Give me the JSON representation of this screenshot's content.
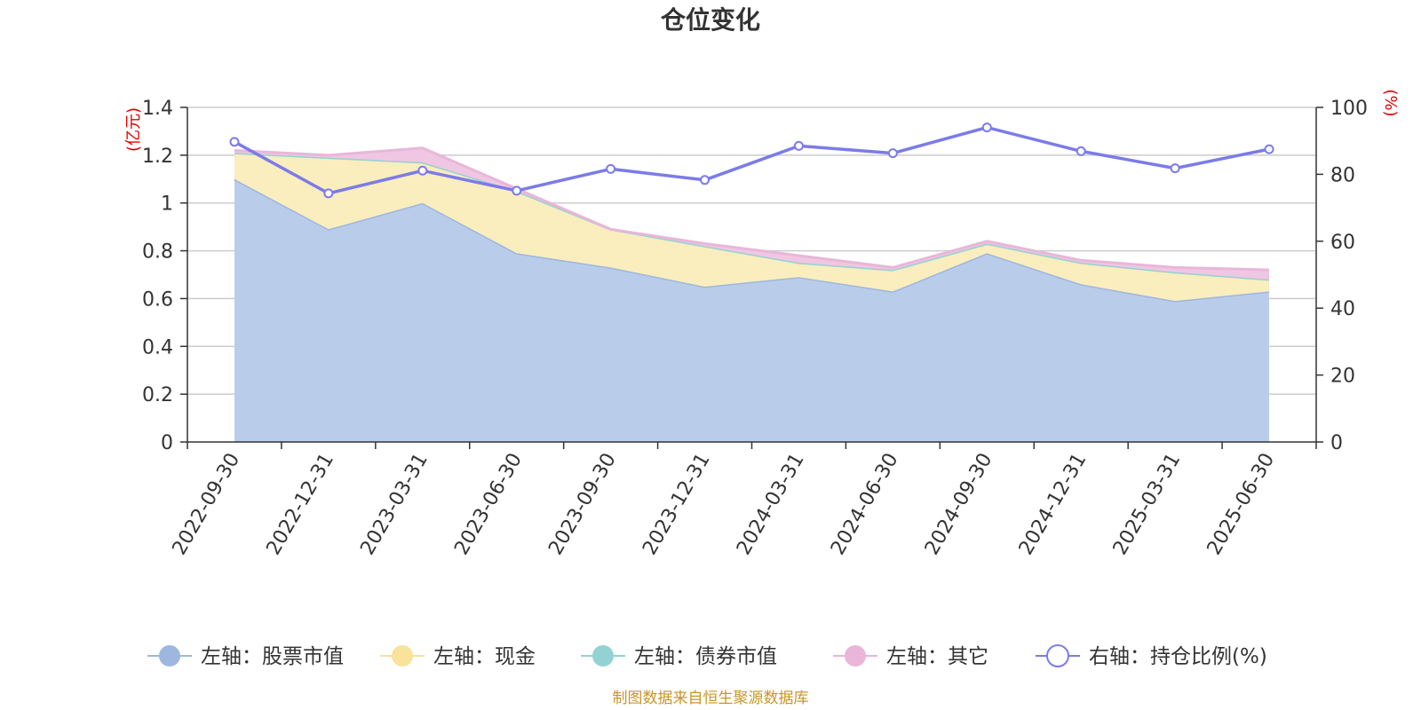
{
  "chart_data": {
    "type": "area",
    "title": "仓位变化",
    "x": [
      "2022-09-30",
      "2022-12-31",
      "2023-03-31",
      "2023-06-30",
      "2023-09-30",
      "2023-12-31",
      "2024-03-31",
      "2024-06-30",
      "2024-09-30",
      "2024-12-31",
      "2025-03-31",
      "2025-06-30"
    ],
    "left_axis": {
      "unit": "(亿元)",
      "range": [
        0,
        1.4
      ],
      "ticks": [
        "0",
        "0.2",
        "0.4",
        "0.6",
        "0.8",
        "1",
        "1.2",
        "1.4"
      ]
    },
    "right_axis": {
      "unit": "(%)",
      "range": [
        0,
        100
      ],
      "ticks": [
        "0",
        "20",
        "40",
        "60",
        "80",
        "100"
      ]
    },
    "grid": true,
    "legend_position": "bottom",
    "series": [
      {
        "name": "左轴：股票市值",
        "axis": "left",
        "stacked": true,
        "color": "#9db7e0",
        "fill": "#b9cdea",
        "values": [
          1.1,
          0.89,
          1.0,
          0.79,
          0.73,
          0.65,
          0.69,
          0.63,
          0.79,
          0.66,
          0.59,
          0.63
        ]
      },
      {
        "name": "左轴：现金",
        "axis": "left",
        "stacked": true,
        "color": "#f9e29c",
        "fill": "#faedbe",
        "values": [
          0.11,
          0.3,
          0.17,
          0.26,
          0.16,
          0.17,
          0.06,
          0.09,
          0.04,
          0.09,
          0.12,
          0.05
        ]
      },
      {
        "name": "左轴：债券市值",
        "axis": "left",
        "stacked": true,
        "color": "#93d2d3",
        "fill": "#b7e0e0",
        "values": [
          0,
          0,
          0,
          0,
          0,
          0,
          0,
          0,
          0,
          0,
          0,
          0
        ]
      },
      {
        "name": "左轴：其它",
        "axis": "left",
        "stacked": true,
        "color": "#e9b6d9",
        "fill": "#efc7e3",
        "values": [
          0.01,
          0.01,
          0.06,
          0.01,
          0.0,
          0.01,
          0.03,
          0.01,
          0.01,
          0.01,
          0.02,
          0.04
        ]
      },
      {
        "name": "右轴：持仓比例(%)",
        "axis": "right",
        "stacked": false,
        "color": "#7b7be9",
        "fill": "none",
        "values": [
          89.7,
          74.3,
          81.1,
          75.1,
          81.6,
          78.3,
          88.5,
          86.3,
          94.0,
          86.9,
          81.8,
          87.5
        ]
      }
    ],
    "source": "制图数据来自恒生聚源数据库"
  }
}
